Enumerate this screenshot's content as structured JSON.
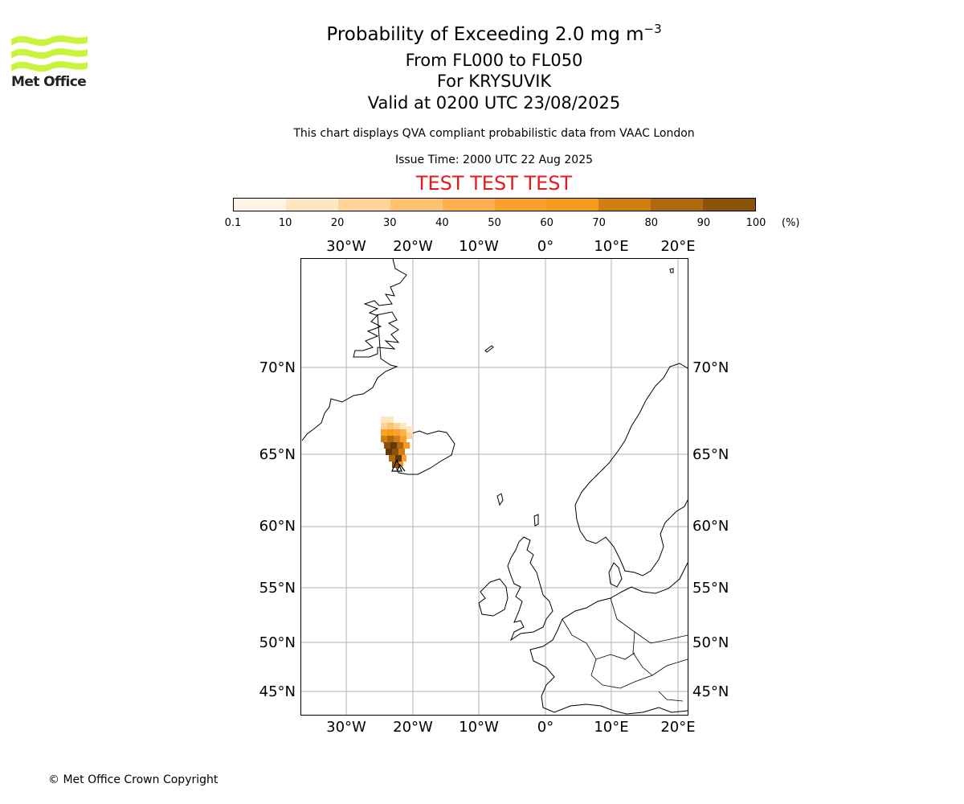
{
  "logo": {
    "text": "Met Office",
    "icon": "met-office-waves-logo",
    "color": "#c8f43c"
  },
  "header": {
    "title_prefix": "Probability of Exceeding 2.0 mg m",
    "title_exponent": "−3",
    "flight_levels": "From FL000 to FL050",
    "volcano": "For KRYSUVIK",
    "valid_time": "Valid at 0200 UTC 23/08/2025",
    "description": "This chart displays QVA compliant probabilistic data from VAAC London",
    "issue_time": "Issue Time: 2000 UTC 22 Aug 2025",
    "test_banner": "TEST TEST TEST"
  },
  "colorbar": {
    "ticks": [
      "0.1",
      "10",
      "20",
      "30",
      "40",
      "50",
      "60",
      "70",
      "80",
      "90",
      "100"
    ],
    "unit": "(%)",
    "colors": [
      "#fff5e5",
      "#fee6c2",
      "#fdd39a",
      "#fdc272",
      "#fdb04d",
      "#fba02c",
      "#f59a1a",
      "#d07f13",
      "#ae680e",
      "#8a520b",
      "#613a07"
    ]
  },
  "map": {
    "lon_labels": [
      "30°W",
      "20°W",
      "10°W",
      "0°",
      "10°E",
      "20°E"
    ],
    "lat_labels": [
      "70°N",
      "65°N",
      "60°N",
      "55°N",
      "50°N",
      "45°N"
    ],
    "ash_region": "KRYSUVIK plume over western Iceland"
  },
  "footer": {
    "copyright": "© Met Office Crown Copyright"
  }
}
